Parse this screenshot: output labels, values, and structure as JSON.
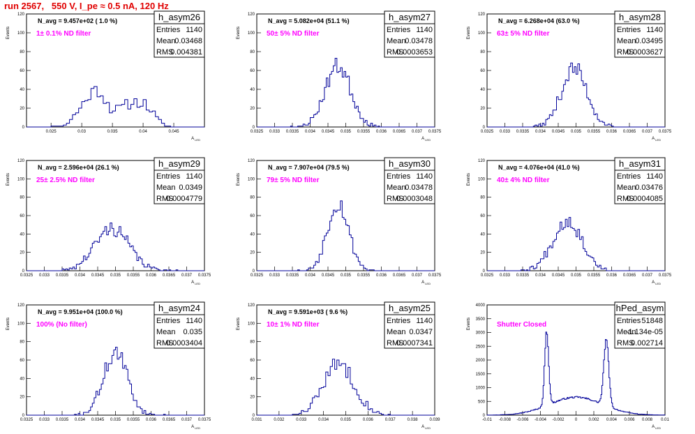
{
  "run_title": "run 2567,   550 V, I_pe ≈ 0.5 nA, 120 Hz",
  "chart_data": [
    {
      "type": "bar",
      "name": "h_asym26",
      "navg": "N_avg = 9.457e+02 ( 1.0 %)",
      "note": "1± 0.1% ND filter",
      "entries": "1140",
      "mean": "0.03468",
      "rms": "0.004381",
      "xlabel": "A",
      "xlabel_sub": "LED",
      "ylabel": "Events",
      "xticks": [
        "0.025",
        "0.03",
        "0.035",
        "0.04",
        "0.045"
      ],
      "xtick_values": [
        0.025,
        0.03,
        0.035,
        0.04,
        0.045
      ],
      "xlim": [
        0.021,
        0.05
      ],
      "ylim": [
        0,
        120
      ],
      "yticks": [
        0,
        20,
        40,
        60,
        80,
        100,
        120
      ],
      "bin_width": 0.0005,
      "peaks": [
        [
          0.031,
          25,
          0.0018
        ],
        [
          0.033,
          22,
          0.0013
        ],
        [
          0.0375,
          22,
          0.002
        ],
        [
          0.0405,
          16,
          0.0015
        ]
      ],
      "seed": 11
    },
    {
      "type": "bar",
      "name": "h_asym27",
      "navg": "N_avg = 5.082e+04 (51.1 %)",
      "note": "50± 5% ND filter",
      "entries": "1140",
      "mean": "0.03478",
      "rms": "0.0003653",
      "xlabel": "A",
      "xlabel_sub": "LED",
      "ylabel": "Events",
      "xticks": [
        "0.0325",
        "0.033",
        "0.0335",
        "0.034",
        "0.0345",
        "0.035",
        "0.0355",
        "0.036",
        "0.0365",
        "0.037",
        "0.0375"
      ],
      "xtick_values": [
        0.0325,
        0.033,
        0.0335,
        0.034,
        0.0345,
        0.035,
        0.0355,
        0.036,
        0.0365,
        0.037,
        0.0375
      ],
      "xlim": [
        0.0325,
        0.0375
      ],
      "ylim": [
        0,
        120
      ],
      "yticks": [
        0,
        20,
        40,
        60,
        80,
        100,
        120
      ],
      "bin_width": 5e-05,
      "peaks": [
        [
          0.03478,
          65,
          0.00036
        ]
      ],
      "seed": 23
    },
    {
      "type": "bar",
      "name": "h_asym28",
      "navg": "N_avg = 6.268e+04 (63.0 %)",
      "note": "63± 5% ND filter",
      "entries": "1140",
      "mean": "0.03495",
      "rms": "0.0003627",
      "xlabel": "A",
      "xlabel_sub": "LED",
      "ylabel": "Events",
      "xticks": [
        "0.0325",
        "0.033",
        "0.0335",
        "0.034",
        "0.0345",
        "0.035",
        "0.0355",
        "0.036",
        "0.0365",
        "0.037",
        "0.0375"
      ],
      "xtick_values": [
        0.0325,
        0.033,
        0.0335,
        0.034,
        0.0345,
        0.035,
        0.0355,
        0.036,
        0.0365,
        0.037,
        0.0375
      ],
      "xlim": [
        0.0325,
        0.0375
      ],
      "ylim": [
        0,
        120
      ],
      "yticks": [
        0,
        20,
        40,
        60,
        80,
        100,
        120
      ],
      "bin_width": 5e-05,
      "peaks": [
        [
          0.03495,
          62,
          0.00036
        ]
      ],
      "seed": 37
    },
    {
      "type": "bar",
      "name": "h_asym29",
      "navg": "N_avg = 2.596e+04 (26.1 %)",
      "note": "25± 2.5% ND filter",
      "entries": "1140",
      "mean": "0.0349",
      "rms": "0.0004779",
      "xlabel": "A",
      "xlabel_sub": "LED",
      "ylabel": "Events",
      "xticks": [
        "0.0325",
        "0.033",
        "0.0335",
        "0.034",
        "0.0345",
        "0.035",
        "0.0355",
        "0.036",
        "0.0365",
        "0.037",
        "0.0375"
      ],
      "xtick_values": [
        0.0325,
        0.033,
        0.0335,
        0.034,
        0.0345,
        0.035,
        0.0355,
        0.036,
        0.0365,
        0.037,
        0.0375
      ],
      "xlim": [
        0.0325,
        0.0375
      ],
      "ylim": [
        0,
        120
      ],
      "yticks": [
        0,
        20,
        40,
        60,
        80,
        100,
        120
      ],
      "bin_width": 5e-05,
      "peaks": [
        [
          0.0349,
          46,
          0.00048
        ]
      ],
      "seed": 41
    },
    {
      "type": "bar",
      "name": "h_asym30",
      "navg": "N_avg = 7.907e+04 (79.5 %)",
      "note": "79± 5% ND filter",
      "entries": "1140",
      "mean": "0.03478",
      "rms": "0.0003048",
      "xlabel": "A",
      "xlabel_sub": "LED",
      "ylabel": "Events",
      "xticks": [
        "0.0325",
        "0.033",
        "0.0335",
        "0.034",
        "0.0345",
        "0.035",
        "0.0355",
        "0.036",
        "0.0365",
        "0.037",
        "0.0375"
      ],
      "xtick_values": [
        0.0325,
        0.033,
        0.0335,
        0.034,
        0.0345,
        0.035,
        0.0355,
        0.036,
        0.0365,
        0.037,
        0.0375
      ],
      "xlim": [
        0.0325,
        0.0375
      ],
      "ylim": [
        0,
        120
      ],
      "yticks": [
        0,
        20,
        40,
        60,
        80,
        100,
        120
      ],
      "bin_width": 5e-05,
      "peaks": [
        [
          0.03478,
          74,
          0.0003
        ]
      ],
      "seed": 53
    },
    {
      "type": "bar",
      "name": "h_asym31",
      "navg": "N_avg = 4.076e+04 (41.0 %)",
      "note": "40± 4% ND filter",
      "entries": "1140",
      "mean": "0.03476",
      "rms": "0.0004085",
      "xlabel": "A",
      "xlabel_sub": "LED",
      "ylabel": "Events",
      "xticks": [
        "0.0325",
        "0.033",
        "0.0335",
        "0.034",
        "0.0345",
        "0.035",
        "0.0355",
        "0.036",
        "0.0365",
        "0.037",
        "0.0375"
      ],
      "xtick_values": [
        0.0325,
        0.033,
        0.0335,
        0.034,
        0.0345,
        0.035,
        0.0355,
        0.036,
        0.0365,
        0.037,
        0.0375
      ],
      "xlim": [
        0.0325,
        0.0375
      ],
      "ylim": [
        0,
        120
      ],
      "yticks": [
        0,
        20,
        40,
        60,
        80,
        100,
        120
      ],
      "bin_width": 5e-05,
      "peaks": [
        [
          0.03476,
          55,
          0.00041
        ]
      ],
      "seed": 67
    },
    {
      "type": "bar",
      "name": "h_asym24",
      "navg": "N_avg = 9.951e+04 (100.0 %)",
      "note": "100% (No filter)",
      "entries": "1140",
      "mean": "0.035",
      "rms": "0.0003404",
      "xlabel": "A",
      "xlabel_sub": "LED",
      "ylabel": "Events",
      "xticks": [
        "0.0325",
        "0.033",
        "0.0335",
        "0.034",
        "0.0345",
        "0.035",
        "0.0355",
        "0.036",
        "0.0365",
        "0.037",
        "0.0375"
      ],
      "xtick_values": [
        0.0325,
        0.033,
        0.0335,
        0.034,
        0.0345,
        0.035,
        0.0355,
        0.036,
        0.0365,
        0.037,
        0.0375
      ],
      "xlim": [
        0.0325,
        0.0375
      ],
      "ylim": [
        0,
        120
      ],
      "yticks": [
        0,
        20,
        40,
        60,
        80,
        100,
        120
      ],
      "bin_width": 5e-05,
      "peaks": [
        [
          0.035,
          68,
          0.00034
        ]
      ],
      "seed": 71
    },
    {
      "type": "bar",
      "name": "h_asym25",
      "navg": "N_avg = 9.591e+03 ( 9.6 %)",
      "note": "10± 1% ND filter",
      "entries": "1140",
      "mean": "0.0347",
      "rms": "0.0007341",
      "xlabel": "A",
      "xlabel_sub": "LED",
      "ylabel": "Events",
      "xticks": [
        "0.031",
        "0.032",
        "0.033",
        "0.034",
        "0.035",
        "0.036",
        "0.037",
        "0.038",
        "0.039"
      ],
      "xtick_values": [
        0.031,
        0.032,
        0.033,
        0.034,
        0.035,
        0.036,
        0.037,
        0.038,
        0.039
      ],
      "xlim": [
        0.031,
        0.039
      ],
      "ylim": [
        0,
        120
      ],
      "yticks": [
        0,
        20,
        40,
        60,
        80,
        100,
        120
      ],
      "bin_width": 0.0001,
      "peaks": [
        [
          0.0347,
          56,
          0.0007
        ]
      ],
      "seed": 83
    },
    {
      "type": "bar",
      "name": "hPed_asym",
      "navg": "",
      "note": "Shutter Closed",
      "entries": "51848",
      "mean": "-1.134e-05",
      "rms": "0.002714",
      "xlabel": "A",
      "xlabel_sub": "LED",
      "ylabel": "Events",
      "xticks": [
        "-0.01",
        "-0.008",
        "-0.006",
        "-0.004",
        "-0.002",
        "0",
        "0.002",
        "0.004",
        "0.006",
        "0.008",
        "0.01"
      ],
      "xtick_values": [
        -0.01,
        -0.008,
        -0.006,
        -0.004,
        -0.002,
        0,
        0.002,
        0.004,
        0.006,
        0.008,
        0.01
      ],
      "xlim": [
        -0.01,
        0.01
      ],
      "ylim": [
        0,
        4000
      ],
      "yticks": [
        0,
        500,
        1000,
        1500,
        2000,
        2500,
        3000,
        3500,
        4000
      ],
      "bin_width": 0.0001,
      "peaks": [
        [
          -0.0033,
          2700,
          0.00022
        ],
        [
          0.0034,
          2400,
          0.00028
        ],
        [
          0.0,
          650,
          0.003
        ]
      ],
      "seed": 97
    }
  ]
}
